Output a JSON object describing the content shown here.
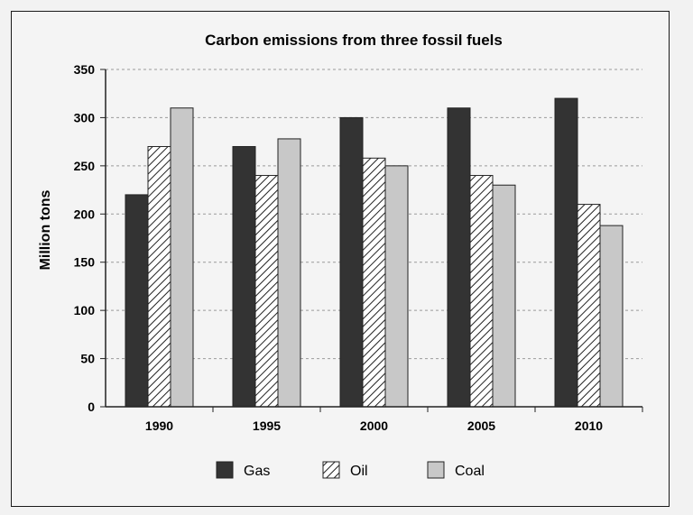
{
  "chart_data": {
    "type": "bar",
    "title": "Carbon emissions from three fossil fuels",
    "xlabel": "",
    "ylabel": "Million tons",
    "categories": [
      "1990",
      "1995",
      "2000",
      "2005",
      "2010"
    ],
    "series": [
      {
        "name": "Gas",
        "values": [
          220,
          270,
          300,
          310,
          320
        ],
        "fill": "#333333",
        "pattern": "solid"
      },
      {
        "name": "Oil",
        "values": [
          270,
          240,
          258,
          240,
          210
        ],
        "fill": "#ffffff",
        "pattern": "diagonal-hatch"
      },
      {
        "name": "Coal",
        "values": [
          310,
          278,
          250,
          230,
          188
        ],
        "fill": "#c8c8c8",
        "pattern": "solid"
      }
    ],
    "ylim": [
      0,
      350
    ],
    "yticks": [
      "0",
      "50",
      "100",
      "150",
      "200",
      "250",
      "300",
      "350"
    ],
    "grid": true,
    "legend_position": "bottom"
  }
}
